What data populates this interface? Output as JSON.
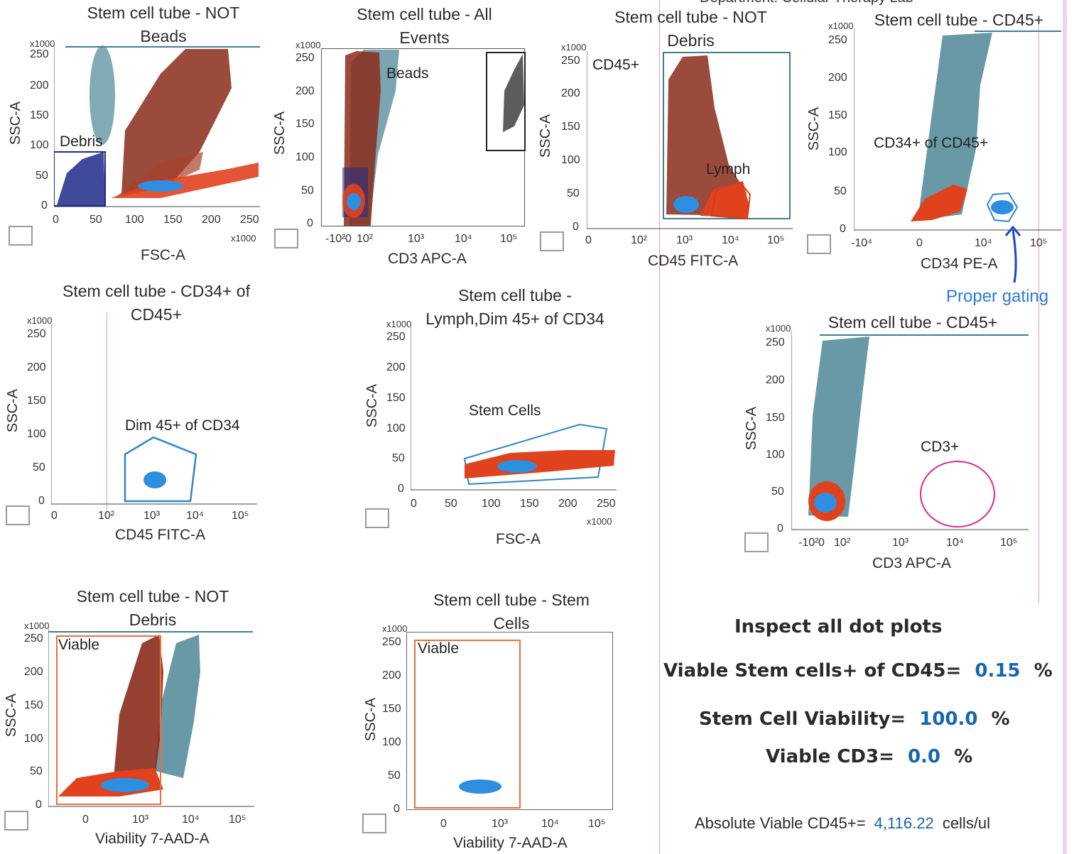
{
  "header_fragment": "Department: Cellular Therapy Lab",
  "plots": [
    {
      "id": "p1",
      "title": "Stem cell tube - NOT Beads",
      "x_axis": "FSC-A",
      "y_axis": "SSC-A",
      "x_ticks": [
        "0",
        "50",
        "100",
        "150",
        "200",
        "250"
      ],
      "y_ticks": [
        "250",
        "200",
        "150",
        "100",
        "50",
        "0"
      ],
      "x_mult": "x1000",
      "y_mult": "x1000",
      "gates": [
        "Debris"
      ]
    },
    {
      "id": "p2",
      "title": "Stem cell tube - All Events",
      "x_axis": "CD3 APC-A",
      "y_axis": "SSC-A",
      "x_ticks": [
        "-10²",
        "0",
        "10²",
        "10³",
        "10⁴",
        "10⁵"
      ],
      "y_ticks": [
        "250",
        "200",
        "150",
        "100",
        "50",
        "0"
      ],
      "y_mult": "x1000",
      "gates": [
        "Beads"
      ]
    },
    {
      "id": "p3",
      "title": "Stem cell tube - NOT Debris",
      "x_axis": "CD45 FITC-A",
      "y_axis": "SSC-A",
      "x_ticks": [
        "0",
        "10²",
        "10³",
        "10⁴",
        "10⁵"
      ],
      "y_ticks": [
        "250",
        "200",
        "150",
        "100",
        "50",
        "0"
      ],
      "y_mult": "x1000",
      "gates": [
        "CD45+",
        "Lymph"
      ]
    },
    {
      "id": "p4",
      "title": "Stem cell tube - CD45+",
      "x_axis": "CD34 PE-A",
      "y_axis": "SSC-A",
      "x_ticks": [
        "-10⁴",
        "0",
        "10⁴",
        "10⁵"
      ],
      "y_ticks": [
        "250",
        "200",
        "150",
        "100",
        "50",
        "0"
      ],
      "y_mult": "x1000",
      "gates": [
        "CD34+ of CD45+"
      ]
    },
    {
      "id": "p5",
      "title": "Stem cell tube - CD34+ of CD45+",
      "x_axis": "CD45 FITC-A",
      "y_axis": "SSC-A",
      "x_ticks": [
        "0",
        "10²",
        "10³",
        "10⁴",
        "10⁵"
      ],
      "y_ticks": [
        "250",
        "200",
        "150",
        "100",
        "50",
        "0"
      ],
      "y_mult": "x1000",
      "gates": [
        "Dim 45+ of CD34"
      ]
    },
    {
      "id": "p6",
      "title": "Stem cell tube - Lymph,Dim 45+ of CD34",
      "x_axis": "FSC-A",
      "y_axis": "SSC-A",
      "x_ticks": [
        "0",
        "50",
        "100",
        "150",
        "200",
        "250"
      ],
      "y_ticks": [
        "250",
        "200",
        "150",
        "100",
        "50",
        "0"
      ],
      "x_mult": "x1000",
      "y_mult": "x1000",
      "gates": [
        "Stem Cells"
      ]
    },
    {
      "id": "p7",
      "title": "Stem cell tube - CD45+",
      "x_axis": "CD3 APC-A",
      "y_axis": "SSC-A",
      "x_ticks": [
        "-10²",
        "0",
        "10²",
        "10³",
        "10⁴",
        "10⁵"
      ],
      "y_ticks": [
        "250",
        "200",
        "150",
        "100",
        "50",
        "0"
      ],
      "y_mult": "x1000",
      "gates": [
        "CD3+"
      ]
    },
    {
      "id": "p8",
      "title": "Stem cell tube - NOT Debris",
      "x_axis": "Viability 7-AAD-A",
      "y_axis": "SSC-A",
      "x_ticks": [
        "0",
        "10³",
        "10⁴",
        "10⁵"
      ],
      "y_ticks": [
        "250",
        "200",
        "150",
        "100",
        "50",
        "0"
      ],
      "y_mult": "x1000",
      "gates": [
        "Viable"
      ]
    },
    {
      "id": "p9",
      "title": "Stem cell tube - Stem Cells",
      "x_axis": "Viability 7-AAD-A",
      "y_axis": "SSC-A",
      "x_ticks": [
        "0",
        "10³",
        "10⁴",
        "10⁵"
      ],
      "y_ticks": [
        "250",
        "200",
        "150",
        "100",
        "50",
        "0"
      ],
      "y_mult": "x1000",
      "gates": [
        "Viable"
      ]
    }
  ],
  "annotation": {
    "text": "Proper gating"
  },
  "summary": {
    "heading": "Inspect all dot plots",
    "viable_stem_label": "Viable Stem cells+ of CD45=",
    "viable_stem_value": "0.15",
    "stem_viability_label": "Stem Cell Viability=",
    "stem_viability_value": "100.0",
    "viable_cd3_label": "Viable CD3=",
    "viable_cd3_value": "0.0",
    "pct": "%",
    "abs_label": "Absolute Viable CD45+=",
    "abs_value": "4,116.22",
    "abs_unit": "cells/ul"
  },
  "colors": {
    "teal": "#3f7f8f",
    "red": "#c8361a",
    "blue": "#2e8ee0",
    "navy": "#1e2a8a",
    "gate_blue": "#2f86c8",
    "gate_orange": "#e8703a",
    "gate_magenta": "#d62b9a",
    "value_blue": "#1565b0"
  }
}
